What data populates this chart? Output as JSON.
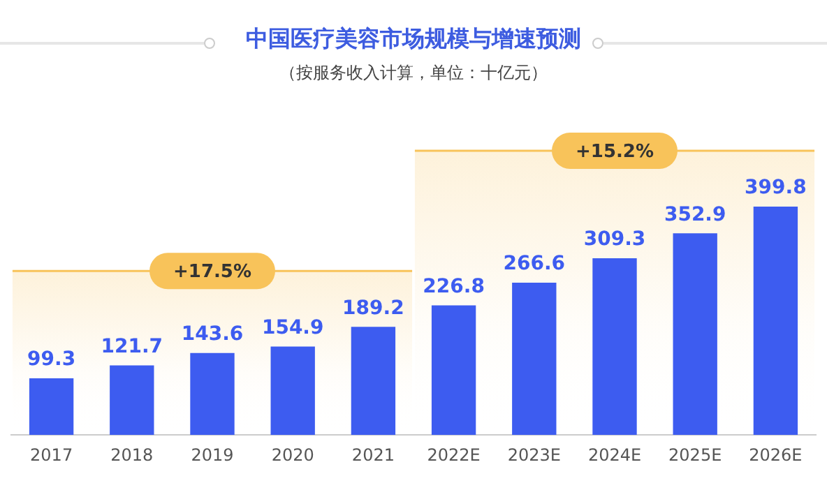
{
  "chart_data": {
    "type": "bar",
    "title": "中国医疗美容市场规模与增速预测",
    "subtitle": "（按服务收入计算，单位：十亿元）",
    "categories": [
      "2017",
      "2018",
      "2019",
      "2020",
      "2021",
      "2022E",
      "2023E",
      "2024E",
      "2025E",
      "2026E"
    ],
    "values": [
      99.3,
      121.7,
      143.6,
      154.9,
      189.2,
      226.8,
      266.6,
      309.3,
      352.9,
      399.8
    ],
    "color": "#3d5cf0",
    "data_labels": true,
    "grid": false,
    "bands": [
      {
        "axis": "x",
        "from": "2017",
        "to": "2021",
        "label": "+17.5%",
        "color": "#f8c35a"
      },
      {
        "axis": "x",
        "from": "2022E",
        "to": "2026E",
        "label": "+15.2%",
        "color": "#f8c35a"
      }
    ]
  }
}
